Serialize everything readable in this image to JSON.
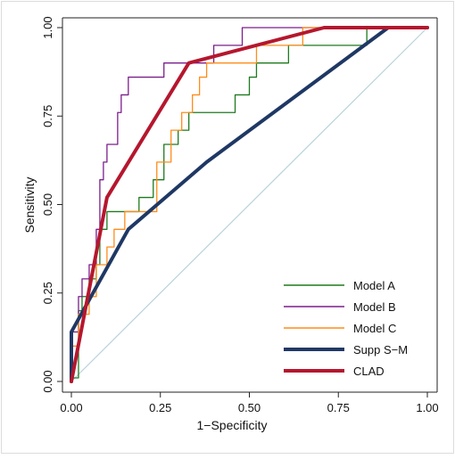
{
  "chart_data": {
    "type": "line",
    "xlabel": "1−Specificity",
    "ylabel": "Sensitivity",
    "xlim": [
      0,
      1
    ],
    "ylim": [
      0,
      1
    ],
    "x_ticks": [
      "0.00",
      "0.25",
      "0.50",
      "0.75",
      "1.00"
    ],
    "y_ticks": [
      "0.00",
      "0.25",
      "0.50",
      "0.75",
      "1.00"
    ],
    "x_tick_values": [
      0,
      0.25,
      0.5,
      0.75,
      1
    ],
    "y_tick_values": [
      0,
      0.25,
      0.5,
      0.75,
      1
    ],
    "grid": false,
    "legend_position": "bottom-right",
    "reference_line": {
      "x": [
        0,
        1
      ],
      "y": [
        0,
        1
      ],
      "color": "#b8d3dc"
    },
    "series": [
      {
        "name": "Model A",
        "color": "#1e7a1e",
        "width": "thin",
        "x": [
          0,
          0,
          0.02,
          0.02,
          0.03,
          0.03,
          0.05,
          0.05,
          0.07,
          0.07,
          0.08,
          0.08,
          0.1,
          0.1,
          0.19,
          0.19,
          0.23,
          0.23,
          0.26,
          0.26,
          0.3,
          0.3,
          0.33,
          0.33,
          0.46,
          0.46,
          0.5,
          0.5,
          0.52,
          0.52,
          0.61,
          0.61,
          0.65,
          0.65,
          0.83,
          0.83,
          1
        ],
        "y": [
          0,
          0.01,
          0.01,
          0.2,
          0.2,
          0.24,
          0.24,
          0.29,
          0.29,
          0.33,
          0.33,
          0.43,
          0.43,
          0.48,
          0.48,
          0.52,
          0.52,
          0.57,
          0.57,
          0.67,
          0.67,
          0.71,
          0.71,
          0.76,
          0.76,
          0.81,
          0.81,
          0.86,
          0.86,
          0.9,
          0.9,
          0.95,
          0.95,
          0.95,
          0.95,
          1,
          1
        ]
      },
      {
        "name": "Model B",
        "color": "#7b1e8c",
        "width": "thin",
        "x": [
          0,
          0,
          0.02,
          0.02,
          0.03,
          0.03,
          0.05,
          0.05,
          0.07,
          0.07,
          0.08,
          0.08,
          0.09,
          0.09,
          0.1,
          0.1,
          0.13,
          0.13,
          0.14,
          0.14,
          0.16,
          0.16,
          0.26,
          0.26,
          0.3,
          0.3,
          0.4,
          0.4,
          0.44,
          0.44,
          0.48,
          0.48,
          1
        ],
        "y": [
          0,
          0.14,
          0.14,
          0.24,
          0.24,
          0.29,
          0.29,
          0.33,
          0.33,
          0.43,
          0.43,
          0.57,
          0.57,
          0.62,
          0.62,
          0.67,
          0.67,
          0.76,
          0.76,
          0.81,
          0.81,
          0.86,
          0.86,
          0.9,
          0.9,
          0.9,
          0.9,
          0.95,
          0.95,
          0.95,
          0.95,
          1,
          1
        ]
      },
      {
        "name": "Model C",
        "color": "#ff8c1a",
        "width": "thin",
        "x": [
          0,
          0,
          0.02,
          0.02,
          0.05,
          0.05,
          0.07,
          0.07,
          0.1,
          0.1,
          0.12,
          0.12,
          0.15,
          0.15,
          0.24,
          0.24,
          0.28,
          0.28,
          0.31,
          0.31,
          0.34,
          0.34,
          0.36,
          0.36,
          0.38,
          0.38,
          0.43,
          0.43,
          0.52,
          0.52,
          0.65,
          0.65,
          0.71,
          1
        ],
        "y": [
          0,
          0.1,
          0.1,
          0.19,
          0.19,
          0.24,
          0.24,
          0.33,
          0.33,
          0.38,
          0.38,
          0.43,
          0.43,
          0.48,
          0.48,
          0.62,
          0.62,
          0.71,
          0.71,
          0.76,
          0.76,
          0.81,
          0.81,
          0.86,
          0.86,
          0.9,
          0.9,
          0.9,
          0.9,
          0.95,
          0.95,
          1,
          1,
          1
        ]
      },
      {
        "name": "Supp S−M",
        "color": "#1f3864",
        "width": "thick",
        "x": [
          0,
          0,
          0.16,
          0.38,
          0.89,
          1
        ],
        "y": [
          0,
          0.14,
          0.43,
          0.62,
          1,
          1
        ]
      },
      {
        "name": "CLAD",
        "color": "#b5172e",
        "width": "thick",
        "x": [
          0,
          0.1,
          0.33,
          0.71,
          1
        ],
        "y": [
          0,
          0.52,
          0.9,
          1,
          1
        ]
      }
    ]
  }
}
